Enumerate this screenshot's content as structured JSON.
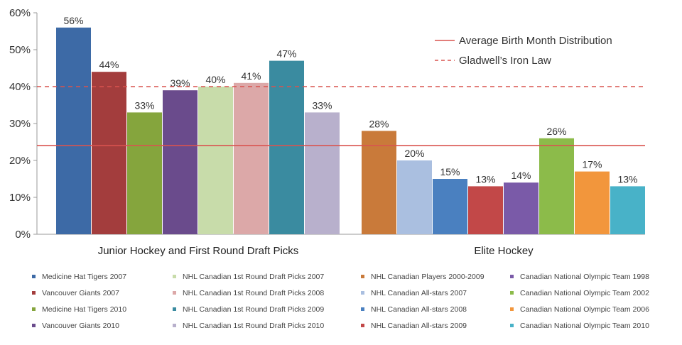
{
  "chart_data": {
    "type": "bar",
    "ylim": [
      0,
      60
    ],
    "yticks": [
      "0%",
      "10%",
      "20%",
      "30%",
      "40%",
      "50%",
      "60%"
    ],
    "groups": [
      {
        "label": "Junior Hockey and First Round Draft Picks",
        "series": [
          {
            "name": "Medicine Hat Tigers 2007",
            "value": 56,
            "label": "56%",
            "color": "#3d6aa6"
          },
          {
            "name": "Vancouver Giants 2007",
            "value": 44,
            "label": "44%",
            "color": "#a33d3d"
          },
          {
            "name": "Medicine Hat Tigers 2010",
            "value": 33,
            "label": "33%",
            "color": "#85a53d"
          },
          {
            "name": "Vancouver Giants 2010",
            "value": 39,
            "label": "39%",
            "color": "#6a4b8c"
          },
          {
            "name": "NHL Canadian 1st Round Draft Picks 2007",
            "value": 40,
            "label": "40%",
            "color": "#c8dcaa"
          },
          {
            "name": "NHL Canadian 1st Round Draft Picks 2008",
            "value": 41,
            "label": "41%",
            "color": "#dca8a8"
          },
          {
            "name": "NHL Canadian 1st Round Draft Picks 2009",
            "value": 47,
            "label": "47%",
            "color": "#3a8ba0"
          },
          {
            "name": "NHL Canadian 1st Round Draft Picks 2010",
            "value": 33,
            "label": "33%",
            "color": "#b8b0cc"
          }
        ]
      },
      {
        "label": "Elite Hockey",
        "series": [
          {
            "name": "NHL Canadian Players 2000-2009",
            "value": 28,
            "label": "28%",
            "color": "#c97a3a"
          },
          {
            "name": "NHL Canadian All-stars 2007",
            "value": 20,
            "label": "20%",
            "color": "#aabfe0"
          },
          {
            "name": "NHL Canadian All-stars 2008",
            "value": 15,
            "label": "15%",
            "color": "#4a80c0"
          },
          {
            "name": "NHL Canadian All-stars 2009",
            "value": 13,
            "label": "13%",
            "color": "#c24848"
          },
          {
            "name": "Canadian National Olympic Team 1998",
            "value": 14,
            "label": "14%",
            "color": "#7a5aa8"
          },
          {
            "name": "Canadian National Olympic Team 2002",
            "value": 26,
            "label": "26%",
            "color": "#8cbb4a"
          },
          {
            "name": "Canadian National Olympic Team 2006",
            "value": 17,
            "label": "17%",
            "color": "#f2963c"
          },
          {
            "name": "Canadian National Olympic Team 2010",
            "value": 13,
            "label": "13%",
            "color": "#48b2c8"
          }
        ]
      }
    ],
    "reference_lines": [
      {
        "name": "Average Birth Month Distribution",
        "value": 24,
        "style": "solid",
        "color": "#d9534f"
      },
      {
        "name": "Gladwell’s Iron Law",
        "value": 40,
        "style": "dashed",
        "color": "#d9534f"
      }
    ],
    "legend_columns": [
      [
        "Medicine Hat Tigers 2007",
        "Vancouver Giants 2007",
        "Medicine Hat Tigers 2010",
        "Vancouver Giants 2010"
      ],
      [
        "NHL Canadian 1st Round Draft Picks 2007",
        "NHL Canadian 1st Round Draft Picks 2008",
        "NHL Canadian 1st Round Draft Picks 2009",
        "NHL Canadian 1st Round Draft Picks 2010"
      ],
      [
        "NHL Canadian Players 2000-2009",
        "NHL Canadian All-stars 2007",
        "NHL Canadian All-stars 2008",
        "NHL Canadian All-stars 2009"
      ],
      [
        "Canadian National Olympic Team 1998",
        "Canadian National Olympic Team 2002",
        "Canadian National Olympic Team 2006",
        "Canadian National Olympic Team 2010"
      ]
    ],
    "grid": false,
    "legend_position": "bottom",
    "reference_legend_position": "top-right"
  }
}
